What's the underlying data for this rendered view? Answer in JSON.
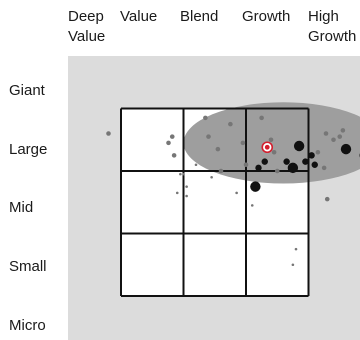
{
  "chart_data": {
    "type": "scatter",
    "style_columns": [
      "Deep\nValue",
      "Value",
      "Blend",
      "Growth",
      "High\nGrowth"
    ],
    "size_rows": [
      "Giant",
      "Large",
      "Mid",
      "Small",
      "Micro"
    ],
    "axes": {
      "x": {
        "label": "",
        "range": [
          -1.5,
          4.5
        ]
      },
      "y": {
        "label": "",
        "range": [
          -0.5,
          4.8
        ]
      }
    },
    "grid": {
      "x_range": [
        0,
        3
      ],
      "y_range": [
        0,
        3
      ]
    },
    "ownership_zone": {
      "center": [
        2.6,
        2.45
      ],
      "rx": 1.6,
      "ry": 0.65
    },
    "centroid": {
      "x": 2.34,
      "y": 2.38
    },
    "holdings": [
      {
        "x": -0.2,
        "y": 2.6,
        "size": "small"
      },
      {
        "x": 0.76,
        "y": 2.45,
        "size": "small"
      },
      {
        "x": 0.82,
        "y": 2.55,
        "size": "small"
      },
      {
        "x": 0.85,
        "y": 2.25,
        "size": "small"
      },
      {
        "x": 0.9,
        "y": 1.65,
        "size": "tiny"
      },
      {
        "x": 1.0,
        "y": 1.95,
        "size": "tiny"
      },
      {
        "x": 0.95,
        "y": 1.95,
        "size": "tiny"
      },
      {
        "x": 1.05,
        "y": 1.6,
        "size": "tiny"
      },
      {
        "x": 1.05,
        "y": 1.75,
        "size": "tiny"
      },
      {
        "x": 1.35,
        "y": 2.85,
        "size": "small"
      },
      {
        "x": 1.4,
        "y": 2.55,
        "size": "small"
      },
      {
        "x": 1.55,
        "y": 2.35,
        "size": "small"
      },
      {
        "x": 1.6,
        "y": 2.0,
        "size": "small"
      },
      {
        "x": 1.75,
        "y": 2.75,
        "size": "small"
      },
      {
        "x": 1.85,
        "y": 1.65,
        "size": "tiny"
      },
      {
        "x": 1.95,
        "y": 2.45,
        "size": "small"
      },
      {
        "x": 2.1,
        "y": 1.45,
        "size": "tiny"
      },
      {
        "x": 2.0,
        "y": 2.1,
        "size": "small"
      },
      {
        "x": 2.25,
        "y": 2.85,
        "size": "small"
      },
      {
        "x": 2.2,
        "y": 2.05,
        "size": "medium"
      },
      {
        "x": 2.15,
        "y": 1.75,
        "size": "large"
      },
      {
        "x": 2.3,
        "y": 2.15,
        "size": "medium"
      },
      {
        "x": 2.4,
        "y": 2.5,
        "size": "small"
      },
      {
        "x": 2.45,
        "y": 2.3,
        "size": "small"
      },
      {
        "x": 2.5,
        "y": 2.0,
        "size": "small"
      },
      {
        "x": 2.65,
        "y": 2.15,
        "size": "medium"
      },
      {
        "x": 2.75,
        "y": 2.05,
        "size": "large"
      },
      {
        "x": 2.85,
        "y": 2.4,
        "size": "large"
      },
      {
        "x": 2.95,
        "y": 2.15,
        "size": "medium"
      },
      {
        "x": 3.05,
        "y": 2.25,
        "size": "medium"
      },
      {
        "x": 3.15,
        "y": 2.3,
        "size": "small"
      },
      {
        "x": 3.1,
        "y": 2.1,
        "size": "medium"
      },
      {
        "x": 3.25,
        "y": 2.05,
        "size": "small"
      },
      {
        "x": 3.28,
        "y": 2.6,
        "size": "small"
      },
      {
        "x": 3.4,
        "y": 2.5,
        "size": "small"
      },
      {
        "x": 3.5,
        "y": 2.55,
        "size": "small"
      },
      {
        "x": 3.55,
        "y": 2.65,
        "size": "small"
      },
      {
        "x": 3.6,
        "y": 2.35,
        "size": "large"
      },
      {
        "x": 3.9,
        "y": 2.25,
        "size": "large"
      },
      {
        "x": 3.3,
        "y": 1.55,
        "size": "small"
      },
      {
        "x": 2.75,
        "y": 0.5,
        "size": "tiny"
      },
      {
        "x": 2.8,
        "y": 0.75,
        "size": "tiny"
      },
      {
        "x": 1.45,
        "y": 1.9,
        "size": "tiny"
      },
      {
        "x": 1.2,
        "y": 2.1,
        "size": "tiny"
      }
    ]
  },
  "colors": {
    "plot_background": "#dcdcdc",
    "ownership_zone": "#9e9e9e",
    "holding_light": "#767676",
    "holding_dark": "#111111",
    "centroid": "#d31f2e",
    "grid_line": "#111111",
    "grid_fill": "#ffffff"
  }
}
